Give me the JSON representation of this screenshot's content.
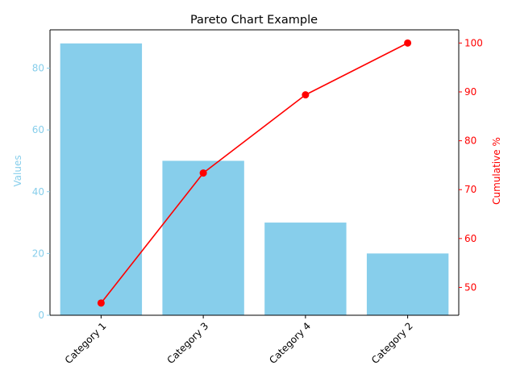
{
  "chart_data": {
    "type": "bar",
    "title": "Pareto Chart Example",
    "categories": [
      "Category 1",
      "Category 3",
      "Category 4",
      "Category 2"
    ],
    "series": [
      {
        "name": "Values",
        "type": "bar",
        "axis": "left",
        "values": [
          88,
          50,
          30,
          20
        ]
      },
      {
        "name": "Cumulative %",
        "type": "line",
        "axis": "right",
        "values": [
          46.8,
          73.4,
          89.4,
          100.0
        ]
      }
    ],
    "xlabel": "",
    "ylabel": "Values",
    "y2label": "Cumulative %",
    "ylim": [
      0,
      92.4
    ],
    "y2lim": [
      44.3,
      102.7
    ],
    "yticks": [
      "0",
      "20",
      "40",
      "60",
      "80"
    ],
    "y2ticks": [
      "50",
      "60",
      "70",
      "80",
      "90",
      "100"
    ],
    "grid": false,
    "legend": "none",
    "colors": {
      "bar": "#87ceeb",
      "line": "#ff0000",
      "left_axis": "#87ceeb",
      "right_axis": "#ff0000",
      "frame": "#000000"
    }
  }
}
